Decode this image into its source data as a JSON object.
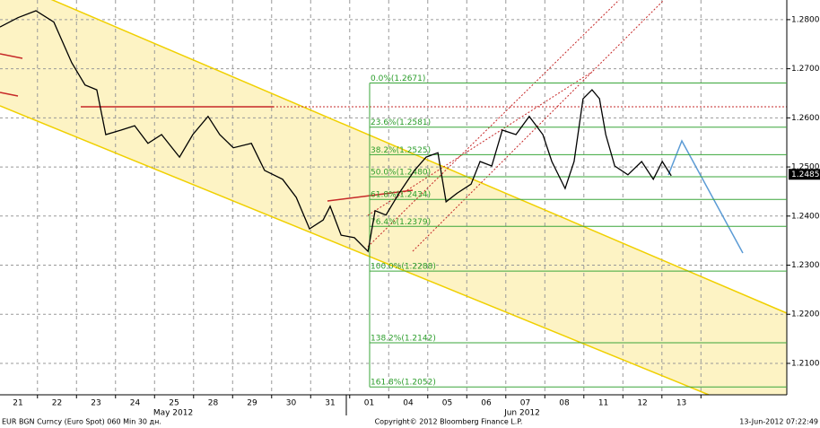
{
  "chart_data": {
    "type": "line",
    "footer_left": "EUR BGN Curncy (Euro Spot) 060 Min 30 дн.",
    "footer_center": "Copyright© 2012 Bloomberg Finance L.P.",
    "footer_right": "13-Jun-2012 07:22:49",
    "months": [
      "May 2012",
      "Jun 2012"
    ],
    "categories": [
      "21",
      "22",
      "23",
      "24",
      "25",
      "28",
      "29",
      "30",
      "31",
      "01",
      "04",
      "05",
      "06",
      "07",
      "08",
      "11",
      "12",
      "13"
    ],
    "xlim": [
      -0.46,
      19.7
    ],
    "ylim": [
      1.2036,
      1.284
    ],
    "yticks": [
      {
        "value": 1.21,
        "label": "1.2100"
      },
      {
        "value": 1.22,
        "label": "1.2200"
      },
      {
        "value": 1.23,
        "label": "1.2300"
      },
      {
        "value": 1.24,
        "label": "1.2400"
      },
      {
        "value": 1.25,
        "label": "1.2500"
      },
      {
        "value": 1.26,
        "label": "1.2600"
      },
      {
        "value": 1.27,
        "label": "1.2700"
      },
      {
        "value": 1.28,
        "label": "1.2800"
      }
    ],
    "last_price": {
      "value": 1.2485,
      "label": "1.2485"
    },
    "fib_levels": [
      {
        "label": "0.0%(1.2671)",
        "value": 1.2671
      },
      {
        "label": "23.6%(1.2581)",
        "value": 1.2581
      },
      {
        "label": "38.2%(1.2525)",
        "value": 1.2525
      },
      {
        "label": "50.0%(1.2480)",
        "value": 1.248
      },
      {
        "label": "61.8%(1.2434)",
        "value": 1.2434
      },
      {
        "label": "76.4%(1.2379)",
        "value": 1.2379
      },
      {
        "label": "100.0%(1.2288)",
        "value": 1.2288
      },
      {
        "label": "138.2%(1.2142)",
        "value": 1.2142
      },
      {
        "label": "161.8%(1.2052)",
        "value": 1.2052
      }
    ],
    "x": [
      -0.46,
      0,
      0.46,
      0.92,
      1.38,
      1.72,
      2.02,
      2.25,
      2.64,
      2.99,
      3.33,
      3.68,
      4.14,
      4.48,
      4.87,
      5.17,
      5.52,
      5.98,
      6.32,
      6.78,
      7.13,
      7.47,
      7.82,
      8.0,
      8.28,
      8.62,
      8.97,
      9.15,
      9.43,
      9.77,
      10.16,
      10.46,
      10.76,
      10.97,
      11.26,
      11.61,
      11.84,
      12.14,
      12.41,
      12.76,
      13.1,
      13.45,
      13.68,
      14.02,
      14.25,
      14.48,
      14.71,
      14.9,
      15.06,
      15.29,
      15.63,
      15.98,
      16.28,
      16.51,
      16.74
    ],
    "series": [
      {
        "color": "#000000",
        "values": [
          1.2785,
          1.2804,
          1.2818,
          1.2795,
          1.2712,
          1.2667,
          1.2657,
          1.2566,
          1.2575,
          1.2584,
          1.2548,
          1.2566,
          1.252,
          1.2566,
          1.2603,
          1.2566,
          1.2539,
          1.2548,
          1.2493,
          1.2475,
          1.2438,
          1.2374,
          1.2392,
          1.242,
          1.2361,
          1.2356,
          1.2328,
          1.2411,
          1.2402,
          1.2447,
          1.2493,
          1.252,
          1.2529,
          1.2429,
          1.2447,
          1.2465,
          1.2511,
          1.2502,
          1.2575,
          1.2566,
          1.2603,
          1.2566,
          1.2511,
          1.2456,
          1.2511,
          1.2639,
          1.2657,
          1.2639,
          1.2566,
          1.2502,
          1.2484,
          1.2511,
          1.2475,
          1.2511,
          1.2482
        ]
      }
    ],
    "grid": true
  }
}
